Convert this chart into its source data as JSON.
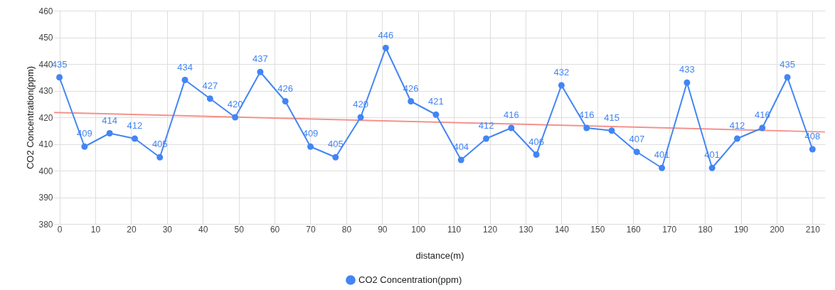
{
  "chart_data": {
    "type": "line",
    "xlabel": "distance(m)",
    "ylabel": "CO2 Concentration(ppm)",
    "x": [
      0,
      7,
      14,
      21,
      28,
      35,
      42,
      49,
      56,
      63,
      70,
      77,
      84,
      91,
      98,
      105,
      112,
      119,
      126,
      133,
      140,
      147,
      154,
      161,
      168,
      175,
      182,
      189,
      196,
      203,
      210
    ],
    "series": [
      {
        "name": "CO2 Concentration(ppm)",
        "color": "#4285f4",
        "values": [
          435,
          409,
          414,
          412,
          405,
          434,
          427,
          420,
          437,
          426,
          409,
          405,
          420,
          446,
          426,
          421,
          404,
          412,
          416,
          406,
          432,
          416,
          415,
          407,
          401,
          433,
          401,
          412,
          416,
          435,
          408
        ],
        "value_labels": [
          "435",
          "409",
          "414",
          "412",
          "405",
          "434",
          "427",
          "420",
          "437",
          "426",
          "409",
          "405",
          "420",
          "446",
          "426",
          "421",
          "404",
          "412",
          "416",
          "406",
          "432",
          "416",
          "415",
          "407",
          "401",
          "433",
          "401",
          "412",
          "416",
          "435",
          "408"
        ]
      },
      {
        "type": "line",
        "color": "#f4928c",
        "x": [
          -1.5,
          213.5
        ],
        "values": [
          421.8,
          414.5
        ],
        "marker": "none"
      }
    ],
    "xlim": [
      -1.5,
      213.5
    ],
    "xticks": [
      0,
      10,
      20,
      30,
      40,
      50,
      60,
      70,
      80,
      90,
      100,
      110,
      120,
      130,
      140,
      150,
      160,
      170,
      180,
      190,
      200,
      210
    ],
    "ylim": [
      380,
      460
    ],
    "yticks": [
      380,
      390,
      400,
      410,
      420,
      430,
      440,
      450,
      460
    ],
    "grid": true,
    "legend": "bottom",
    "marker": "circle"
  }
}
